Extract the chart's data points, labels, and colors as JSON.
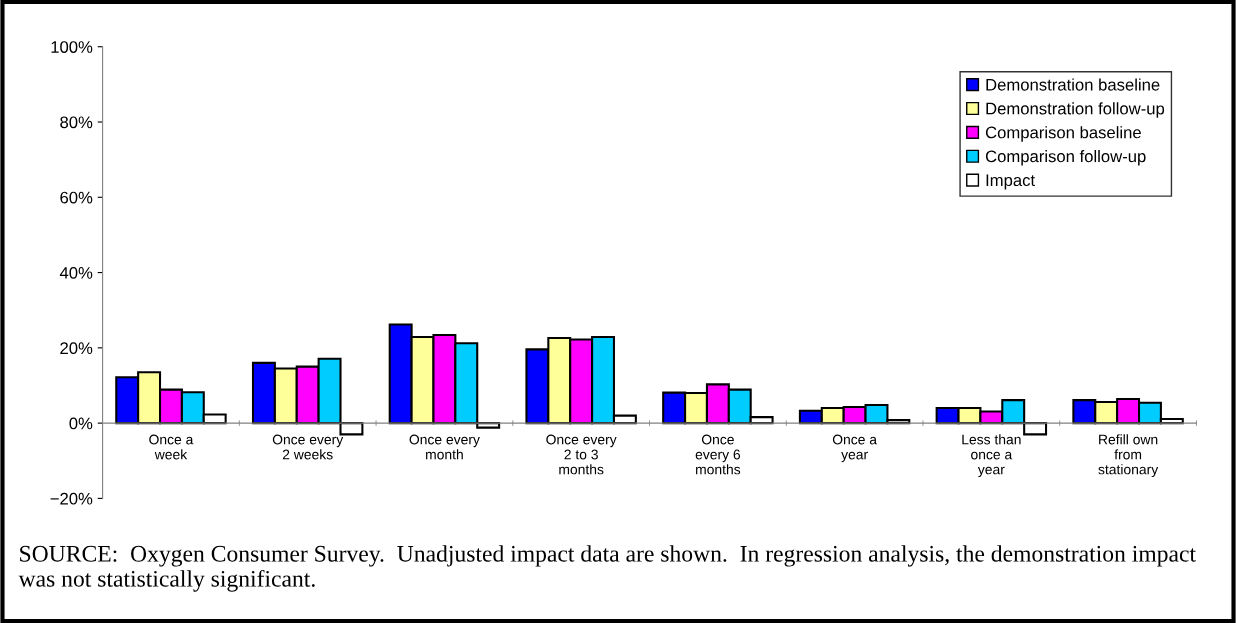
{
  "chart_data": {
    "type": "bar",
    "categories": [
      "Once a\nweek",
      "Once every\n2 weeks",
      "Once every\nmonth",
      "Once every\n2 to 3\nmonths",
      "Once\nevery 6\nmonths",
      "Once a\nyear",
      "Less than\nonce a\nyear",
      "Refill own\nfrom\nstationary"
    ],
    "series": [
      {
        "name": "Demonstration baseline",
        "color": "#0000ff",
        "values": [
          12.2,
          16.0,
          26.2,
          19.6,
          8.1,
          3.3,
          4.0,
          6.1
        ]
      },
      {
        "name": "Demonstration follow-up",
        "color": "#ffff99",
        "values": [
          13.5,
          14.5,
          22.9,
          22.6,
          8.0,
          4.0,
          4.0,
          5.6
        ]
      },
      {
        "name": "Comparison baseline",
        "color": "#ff00ff",
        "values": [
          8.9,
          15.0,
          23.4,
          22.2,
          10.3,
          4.3,
          3.1,
          6.4
        ]
      },
      {
        "name": "Comparison follow-up",
        "color": "#00ccff",
        "values": [
          8.2,
          17.1,
          21.2,
          22.9,
          8.9,
          4.8,
          6.1,
          5.4
        ]
      },
      {
        "name": "Impact",
        "color": "#ffffff",
        "values": [
          2.3,
          -3.0,
          -1.2,
          2.0,
          1.6,
          0.8,
          -3.0,
          1.1
        ]
      }
    ],
    "ylim": [
      -20,
      100
    ],
    "yticks": [
      {
        "value": -20,
        "label": "−20%"
      },
      {
        "value": 0,
        "label": "0%"
      },
      {
        "value": 20,
        "label": "20%"
      },
      {
        "value": 40,
        "label": "40%"
      },
      {
        "value": 60,
        "label": "60%"
      },
      {
        "value": 80,
        "label": "80%"
      },
      {
        "value": 100,
        "label": "100%"
      }
    ],
    "grid": false,
    "legend": "top right",
    "annotations": [
      "SOURCE:  Oxygen Consumer Survey.  Unadjusted impact data are shown.  In regression analysis, the demonstration impact was not statistically significant."
    ]
  }
}
